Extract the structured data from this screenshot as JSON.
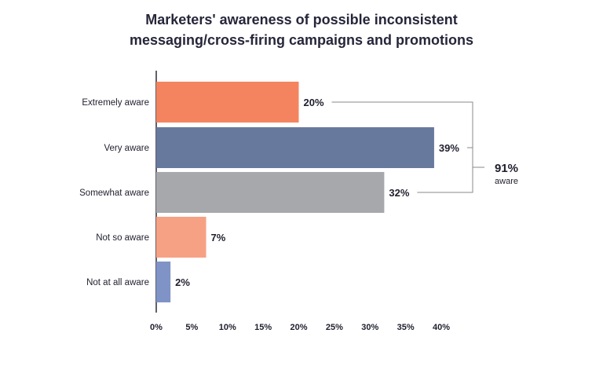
{
  "chart_data": {
    "type": "bar",
    "orientation": "horizontal",
    "title_lines": [
      "Marketers' awareness of possible inconsistent",
      "messaging/cross-firing campaigns and promotions"
    ],
    "categories": [
      "Extremely aware",
      "Very aware",
      "Somewhat aware",
      "Not so aware",
      "Not at all aware"
    ],
    "values": [
      20,
      39,
      32,
      7,
      2
    ],
    "value_labels": [
      "20%",
      "39%",
      "32%",
      "7%",
      "2%"
    ],
    "colors": [
      "#f4845f",
      "#68799e",
      "#a6a8ab",
      "#f7a184",
      "#7f93c6"
    ],
    "xlim": [
      0,
      40
    ],
    "xticks": [
      "0%",
      "5%",
      "10%",
      "15%",
      "20%",
      "25%",
      "30%",
      "35%",
      "40%"
    ],
    "grid": false,
    "annotation": {
      "value": "91%",
      "label": "aware",
      "groups": [
        0,
        1,
        2
      ]
    }
  }
}
